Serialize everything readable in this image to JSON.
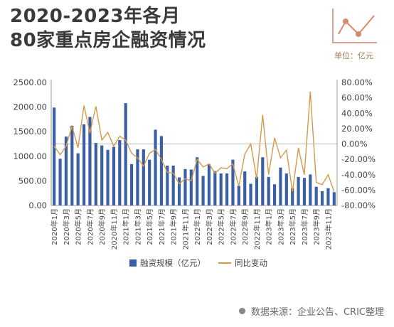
{
  "title": {
    "line1": "2020-2023年各月",
    "line2": "80家重点房企融资情况"
  },
  "unit": "单位：亿元",
  "source": "数据来源：企业公告、CRIC整理",
  "colors": {
    "bar": "#3b5fa5",
    "line": "#d49a4a",
    "title": "#3a3a3a"
  },
  "icon": "line-chart-icon",
  "chart_data": {
    "type": "bar",
    "y_left": {
      "ylim": [
        0,
        2500
      ],
      "ticks": [
        "0.00",
        "500.00",
        "1000.00",
        "1500.00",
        "2000.00",
        "2500.00"
      ]
    },
    "y_right": {
      "ylim": [
        -80,
        80
      ],
      "ticks": [
        "-80.00%",
        "-60.00%",
        "-40.00%",
        "-20.00%",
        "0.00%",
        "20.00%",
        "40.00%",
        "60.00%",
        "80.00%"
      ]
    },
    "x_tick_labels": [
      "2020年1月",
      "2020年3月",
      "2020年5月",
      "2020年7月",
      "2020年9月",
      "2020年11月",
      "2021年1月",
      "2021年3月",
      "2021年5月",
      "2021年7月",
      "2021年9月",
      "2021年11月",
      "2022年1月",
      "2022年3月",
      "2022年5月",
      "2022年7月",
      "2022年9月",
      "2022年11月",
      "2023年1月",
      "2023年3月",
      "2023年5月",
      "2023年7月",
      "2023年9月",
      "2023年11月"
    ],
    "months": [
      "2020年1月",
      "2020年2月",
      "2020年3月",
      "2020年4月",
      "2020年5月",
      "2020年6月",
      "2020年7月",
      "2020年8月",
      "2020年9月",
      "2020年10月",
      "2020年11月",
      "2020年12月",
      "2021年1月",
      "2021年2月",
      "2021年3月",
      "2021年4月",
      "2021年5月",
      "2021年6月",
      "2021年7月",
      "2021年8月",
      "2021年9月",
      "2021年10月",
      "2021年11月",
      "2021年12月",
      "2022年1月",
      "2022年2月",
      "2022年3月",
      "2022年4月",
      "2022年5月",
      "2022年6月",
      "2022年7月",
      "2022年8月",
      "2022年9月",
      "2022年10月",
      "2022年11月",
      "2022年12月",
      "2023年1月",
      "2023年2月",
      "2023年3月",
      "2023年4月",
      "2023年5月",
      "2023年6月",
      "2023年7月",
      "2023年8月",
      "2023年9月",
      "2023年10月",
      "2023年11月",
      "2023年12月"
    ],
    "series": [
      {
        "name": "融资规模（亿元）",
        "type": "bar",
        "axis": "left",
        "values": [
          1990,
          950,
          1400,
          1620,
          1060,
          1650,
          1800,
          1270,
          1220,
          1130,
          1190,
          1330,
          2080,
          840,
          1140,
          1140,
          930,
          1540,
          1410,
          810,
          810,
          570,
          740,
          730,
          980,
          600,
          840,
          700,
          650,
          650,
          930,
          400,
          690,
          440,
          580,
          980,
          580,
          430,
          770,
          650,
          350,
          580,
          560,
          630,
          380,
          290,
          350,
          270
        ]
      },
      {
        "name": "同比变动",
        "type": "line",
        "axis": "right",
        "values": [
          -3,
          -14,
          -3,
          23,
          -5,
          50,
          14,
          49,
          5,
          15,
          -3,
          10,
          5,
          -12,
          -18,
          -29,
          -12,
          -7,
          -20,
          -37,
          -38,
          -52,
          -45,
          -48,
          -20,
          -30,
          -26,
          -38,
          -31,
          -32,
          -26,
          -55,
          -13,
          0,
          -45,
          38,
          -40,
          8,
          -18,
          -8,
          -62,
          -5,
          -40,
          68,
          -50,
          -53,
          -40,
          -62
        ]
      }
    ],
    "legend_position": "bottom",
    "grid": false
  }
}
